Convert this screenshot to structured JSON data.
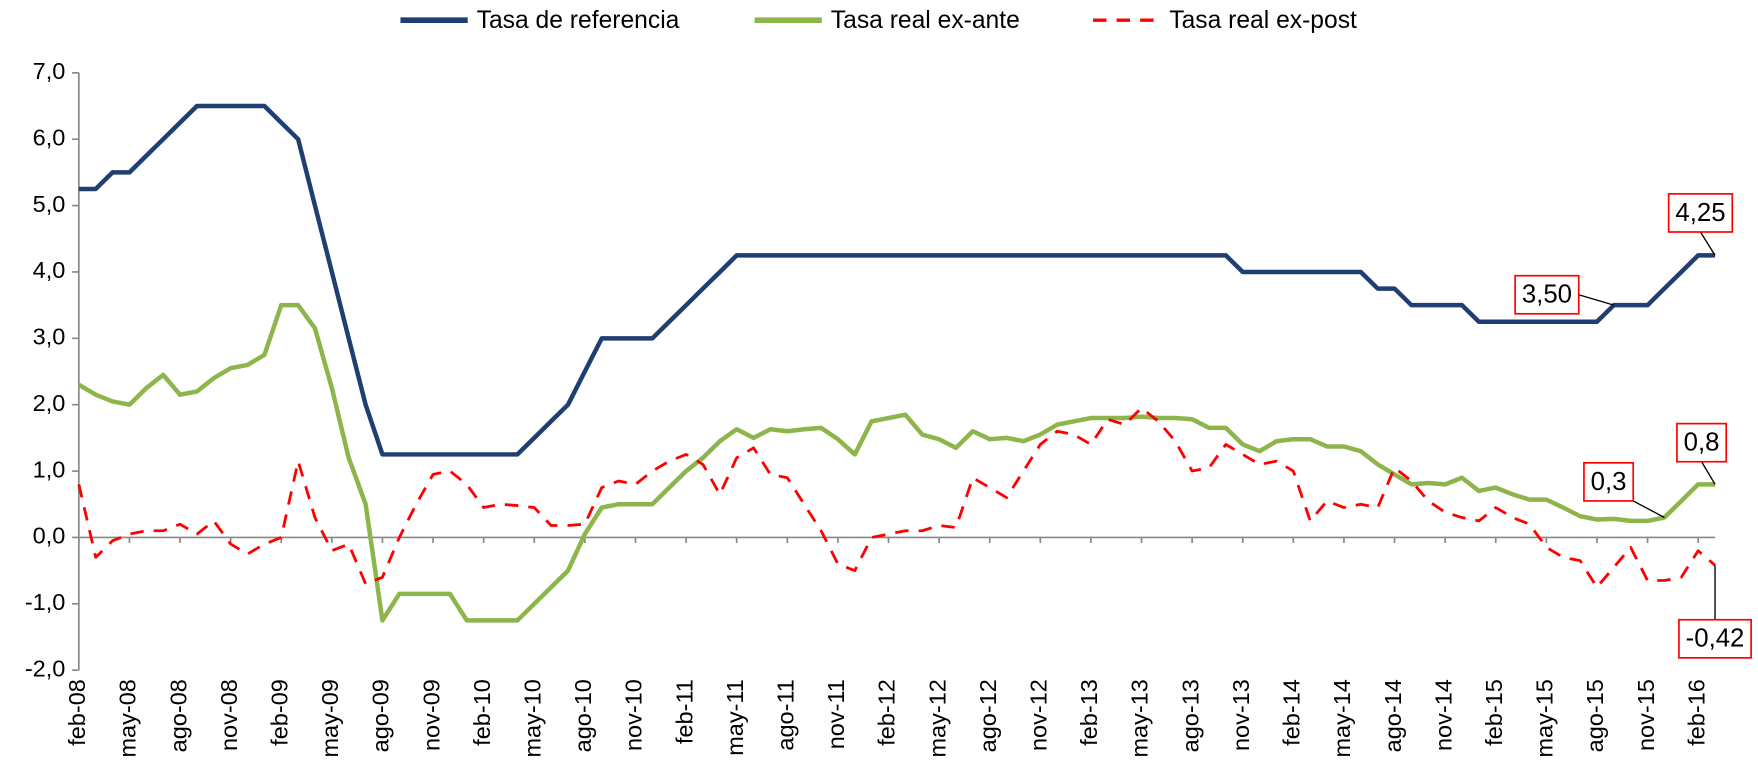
{
  "chart_data": {
    "type": "line",
    "categories": [
      "feb-08",
      null,
      null,
      "may-08",
      null,
      null,
      "ago-08",
      null,
      null,
      "nov-08",
      null,
      null,
      "feb-09",
      null,
      null,
      "may-09",
      null,
      null,
      "ago-09",
      null,
      null,
      "nov-09",
      null,
      null,
      "feb-10",
      null,
      null,
      "may-10",
      null,
      null,
      "ago-10",
      null,
      null,
      "nov-10",
      null,
      null,
      "feb-11",
      null,
      null,
      "may-11",
      null,
      null,
      "ago-11",
      null,
      null,
      "nov-11",
      null,
      null,
      "feb-12",
      null,
      null,
      "may-12",
      null,
      null,
      "ago-12",
      null,
      null,
      "nov-12",
      null,
      null,
      "feb-13",
      null,
      null,
      "may-13",
      null,
      null,
      "ago-13",
      null,
      null,
      "nov-13",
      null,
      null,
      "feb-14",
      null,
      null,
      "may-14",
      null,
      null,
      "ago-14",
      null,
      null,
      "nov-14",
      null,
      null,
      "feb-15",
      null,
      null,
      "may-15",
      null,
      null,
      "ago-15",
      null,
      null,
      "nov-15",
      null,
      null,
      "feb-16",
      null
    ],
    "series": [
      {
        "name": "Tasa de referencia",
        "color": "#1f3f73",
        "dash": false,
        "values": [
          5.25,
          5.25,
          5.5,
          5.5,
          5.75,
          6.0,
          6.25,
          6.5,
          6.5,
          6.5,
          6.5,
          6.5,
          6.25,
          6.0,
          5.0,
          4.0,
          3.0,
          2.0,
          1.25,
          1.25,
          1.25,
          1.25,
          1.25,
          1.25,
          1.25,
          1.25,
          1.25,
          1.5,
          1.75,
          2.0,
          2.5,
          3.0,
          3.0,
          3.0,
          3.0,
          3.25,
          3.5,
          3.75,
          4.0,
          4.25,
          4.25,
          4.25,
          4.25,
          4.25,
          4.25,
          4.25,
          4.25,
          4.25,
          4.25,
          4.25,
          4.25,
          4.25,
          4.25,
          4.25,
          4.25,
          4.25,
          4.25,
          4.25,
          4.25,
          4.25,
          4.25,
          4.25,
          4.25,
          4.25,
          4.25,
          4.25,
          4.25,
          4.25,
          4.25,
          4.0,
          4.0,
          4.0,
          4.0,
          4.0,
          4.0,
          4.0,
          4.0,
          3.75,
          3.75,
          3.5,
          3.5,
          3.5,
          3.5,
          3.25,
          3.25,
          3.25,
          3.25,
          3.25,
          3.25,
          3.25,
          3.25,
          3.5,
          3.5,
          3.5,
          3.75,
          4.0,
          4.25,
          4.25
        ],
        "value_labels": {
          "91": "3,50",
          "97": "4,25"
        }
      },
      {
        "name": "Tasa real ex-ante",
        "color": "#8db54b",
        "dash": false,
        "values": [
          2.3,
          2.15,
          2.05,
          2.0,
          2.25,
          2.45,
          2.15,
          2.2,
          2.4,
          2.55,
          2.6,
          2.75,
          3.5,
          3.5,
          3.15,
          2.25,
          1.2,
          0.5,
          -1.25,
          -0.85,
          -0.85,
          -0.85,
          -0.85,
          -1.25,
          -1.25,
          -1.25,
          -1.25,
          -1.0,
          -0.75,
          -0.5,
          0.05,
          0.45,
          0.5,
          0.5,
          0.5,
          0.75,
          1.0,
          1.2,
          1.45,
          1.63,
          1.5,
          1.63,
          1.6,
          1.63,
          1.65,
          1.48,
          1.25,
          1.75,
          1.8,
          1.85,
          1.55,
          1.48,
          1.35,
          1.6,
          1.48,
          1.5,
          1.45,
          1.55,
          1.7,
          1.75,
          1.8,
          1.8,
          1.8,
          1.82,
          1.8,
          1.8,
          1.78,
          1.65,
          1.65,
          1.4,
          1.3,
          1.45,
          1.48,
          1.48,
          1.37,
          1.37,
          1.3,
          1.1,
          0.95,
          0.8,
          0.82,
          0.8,
          0.9,
          0.7,
          0.75,
          0.65,
          0.57,
          0.57,
          0.45,
          0.32,
          0.27,
          0.28,
          0.25,
          0.25,
          0.3,
          0.55,
          0.8,
          0.8
        ],
        "value_labels": {
          "94": "0,3",
          "97": "0,8"
        }
      },
      {
        "name": "Tasa real ex-post",
        "color": "#ff0000",
        "dash": true,
        "values": [
          0.8,
          -0.3,
          -0.05,
          0.05,
          0.1,
          0.1,
          0.2,
          0.05,
          0.25,
          -0.1,
          -0.25,
          -0.1,
          0.0,
          1.15,
          0.3,
          -0.2,
          -0.1,
          -0.7,
          -0.6,
          0.0,
          0.5,
          0.95,
          1.0,
          0.8,
          0.45,
          0.5,
          0.48,
          0.45,
          0.18,
          0.18,
          0.2,
          0.75,
          0.85,
          0.8,
          1.0,
          1.15,
          1.25,
          1.1,
          0.65,
          1.2,
          1.35,
          0.95,
          0.9,
          0.5,
          0.1,
          -0.4,
          -0.5,
          0.0,
          0.05,
          0.1,
          0.1,
          0.18,
          0.15,
          0.9,
          0.75,
          0.6,
          1.0,
          1.4,
          1.6,
          1.55,
          1.4,
          1.78,
          1.7,
          1.95,
          1.75,
          1.45,
          1.0,
          1.05,
          1.4,
          1.25,
          1.1,
          1.15,
          1.0,
          0.25,
          0.55,
          0.45,
          0.5,
          0.45,
          1.05,
          0.85,
          0.55,
          0.38,
          0.3,
          0.25,
          0.45,
          0.3,
          0.2,
          -0.15,
          -0.3,
          -0.35,
          -0.75,
          -0.45,
          -0.15,
          -0.65,
          -0.65,
          -0.6,
          -0.2,
          -0.42
        ],
        "value_labels": {
          "97": "-0,42"
        }
      }
    ],
    "ylim": [
      -2,
      7
    ],
    "yticks": [
      {
        "value": -2,
        "label": "-2,0"
      },
      {
        "value": -1,
        "label": "-1,0"
      },
      {
        "value": 0,
        "label": "0,0"
      },
      {
        "value": 1,
        "label": "1,0"
      },
      {
        "value": 2,
        "label": "2,0"
      },
      {
        "value": 3,
        "label": "3,0"
      },
      {
        "value": 4,
        "label": "4,0"
      },
      {
        "value": 5,
        "label": "5,0"
      },
      {
        "value": 6,
        "label": "6,0"
      },
      {
        "value": 7,
        "label": "7,0"
      }
    ],
    "grid": false,
    "legend": "top"
  }
}
